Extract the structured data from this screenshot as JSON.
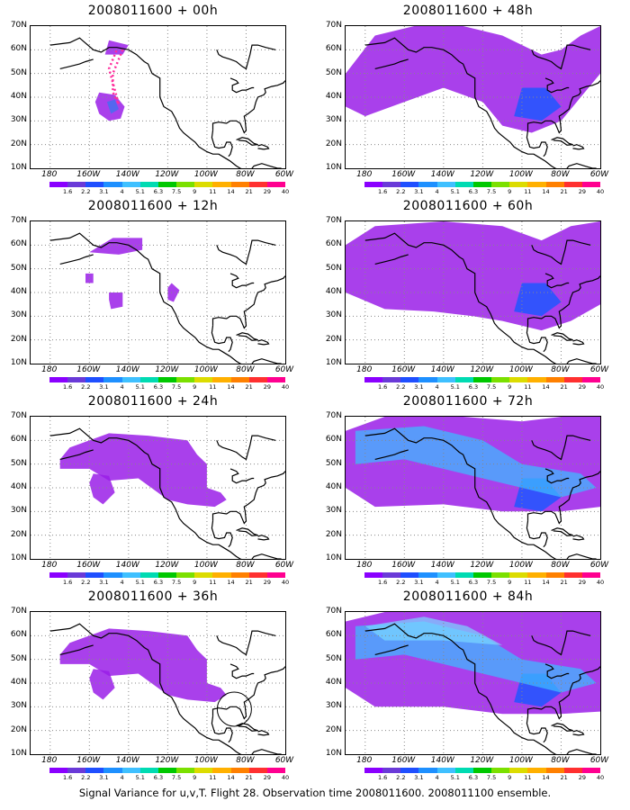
{
  "panels": [
    {
      "title": "2008011600 + 00h",
      "level": 0,
      "track": true
    },
    {
      "title": "2008011600 + 48h",
      "level": 3
    },
    {
      "title": "2008011600 + 12h",
      "level": 1
    },
    {
      "title": "2008011600 + 60h",
      "level": 4
    },
    {
      "title": "2008011600 + 24h",
      "level": 2
    },
    {
      "title": "2008011600 + 72h",
      "level": 5
    },
    {
      "title": "2008011600 + 36h",
      "level": 2,
      "circle": true
    },
    {
      "title": "2008011600 + 84h",
      "level": 6
    }
  ],
  "lat_labels": [
    "70N",
    "60N",
    "50N",
    "40N",
    "30N",
    "20N",
    "10N"
  ],
  "lon_labels": [
    "180",
    "160W",
    "140W",
    "120W",
    "100W",
    "80W",
    "60W"
  ],
  "colorbar": {
    "colors": [
      "#8a00ff",
      "#6a3ad8",
      "#1f4fff",
      "#1e90ff",
      "#3fc0ff",
      "#00dbb2",
      "#00c800",
      "#7be000",
      "#dcdc00",
      "#ffb000",
      "#ff8000",
      "#ff3030",
      "#ff0090"
    ],
    "ticks": [
      "1.6",
      "2.2",
      "3.1",
      "4",
      "5.1",
      "6.3",
      "7.5",
      "9",
      "11",
      "14",
      "21",
      "29",
      "40"
    ]
  },
  "footer": "Signal Variance for u,v,T. Flight 28. Observation time 2008011600. 2008011100 ensemble."
}
